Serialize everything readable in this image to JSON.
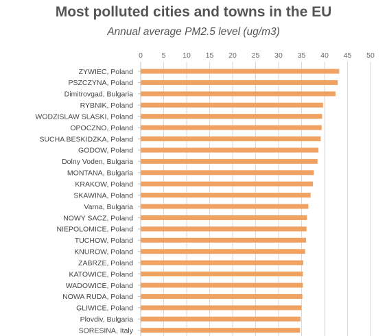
{
  "chart_data": {
    "type": "bar",
    "orientation": "horizontal",
    "title": "Most polluted cities and towns in the EU",
    "subtitle": "Annual average PM2.5 level (ug/m3)",
    "xlim": [
      0,
      50
    ],
    "xticks": [
      "0",
      "5",
      "10",
      "15",
      "20",
      "25",
      "30",
      "35",
      "40",
      "45",
      "50"
    ],
    "gridlines": true,
    "bar_color": "#f0a262",
    "categories": [
      "ZYWIEC, Poland",
      "PSZCZYNA, Poland",
      "Dimitrovgad, Bulgaria",
      "RYBNIK, Poland",
      "WODZISLAW SLASKI, Poland",
      "OPOCZNO, Poland",
      "SUCHA BESKIDZKA, Poland",
      "GODOW, Poland",
      "Dolny Voden, Bulgaria",
      "MONTANA, Bulgaria",
      "KRAKOW, Poland",
      "SKAWINA, Poland",
      "Varna, Bulgaria",
      "NOWY SACZ, Poland",
      "NIEPOLOMICE, Poland",
      "TUCHOW, Poland",
      "KNUROW, Poland",
      "ZABRZE, Poland",
      "KATOWICE, Poland",
      "WADOWICE, Poland",
      "NOWA RUDA, Poland",
      "GLIWICE, Poland",
      "Plovdiv, Bulgaria",
      "SORESINA, Italy"
    ],
    "values": [
      43.1,
      42.8,
      42.3,
      39.6,
      39.4,
      39.3,
      39.1,
      38.6,
      38.4,
      37.6,
      37.4,
      36.9,
      36.4,
      36.1,
      36.0,
      35.9,
      35.7,
      35.3,
      35.2,
      35.2,
      35.1,
      34.9,
      34.7,
      34.6
    ]
  }
}
